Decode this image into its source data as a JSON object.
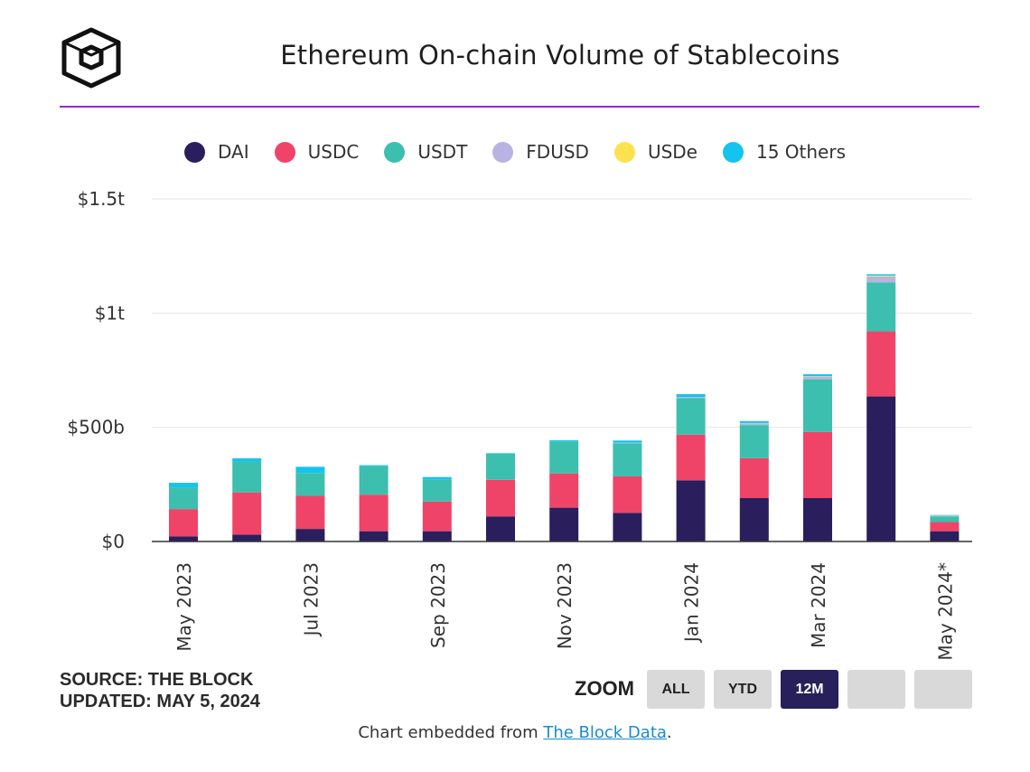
{
  "header": {
    "title": "Ethereum On-chain Volume of Stablecoins"
  },
  "footer": {
    "source": "SOURCE: THE BLOCK",
    "updated": "UPDATED: MAY 5, 2024",
    "zoom_label": "ZOOM",
    "zoom_buttons": [
      "ALL",
      "YTD",
      "12M",
      "",
      ""
    ],
    "zoom_active": "12M",
    "embed_prefix": "Chart embedded from ",
    "embed_link": "The Block Data",
    "embed_suffix": "."
  },
  "colors": {
    "accent_rule": "#9b25d6",
    "zoom_active_bg": "#27205a"
  },
  "chart_data": {
    "type": "bar",
    "stacked": true,
    "title": "Ethereum On-chain Volume of Stablecoins",
    "xlabel": "",
    "ylabel": "",
    "ylim": [
      0,
      1500
    ],
    "unit": "$ billions",
    "yticks": [
      {
        "value": 0,
        "label": "$0"
      },
      {
        "value": 500,
        "label": "$500b"
      },
      {
        "value": 1000,
        "label": "$1t"
      },
      {
        "value": 1500,
        "label": "$1.5t"
      }
    ],
    "grid": true,
    "legend_position": "top-center",
    "categories": [
      "May 2023",
      "Jun 2023",
      "Jul 2023",
      "Aug 2023",
      "Sep 2023",
      "Oct 2023",
      "Nov 2023",
      "Dec 2023",
      "Jan 2024",
      "Feb 2024",
      "Mar 2024",
      "Apr 2024",
      "May 2024*"
    ],
    "tick_labels": [
      "May 2023",
      "",
      "Jul 2023",
      "",
      "Sep 2023",
      "",
      "Nov 2023",
      "",
      "Jan 2024",
      "",
      "Mar 2024",
      "",
      "May 2024*"
    ],
    "series": [
      {
        "name": "DAI",
        "color": "#2a1f5c",
        "values": [
          22,
          30,
          55,
          45,
          45,
          110,
          148,
          125,
          268,
          190,
          190,
          635,
          45
        ]
      },
      {
        "name": "USDC",
        "color": "#ef4468",
        "values": [
          120,
          185,
          145,
          160,
          130,
          160,
          150,
          160,
          200,
          175,
          290,
          285,
          40
        ]
      },
      {
        "name": "USDT",
        "color": "#3dbfaf",
        "values": [
          95,
          135,
          100,
          125,
          95,
          115,
          140,
          145,
          160,
          145,
          230,
          215,
          25
        ]
      },
      {
        "name": "FDUSD",
        "color": "#b9b3e3",
        "values": [
          0,
          0,
          0,
          0,
          0,
          0,
          0,
          3,
          5,
          8,
          12,
          25,
          3
        ]
      },
      {
        "name": "USDe",
        "color": "#fde24f",
        "values": [
          0,
          0,
          0,
          0,
          0,
          0,
          0,
          0,
          0,
          1,
          2,
          4,
          1
        ]
      },
      {
        "name": "15 Others",
        "color": "#13c4ee",
        "values": [
          20,
          14,
          27,
          4,
          12,
          2,
          5,
          9,
          12,
          8,
          8,
          6,
          2
        ]
      }
    ]
  }
}
